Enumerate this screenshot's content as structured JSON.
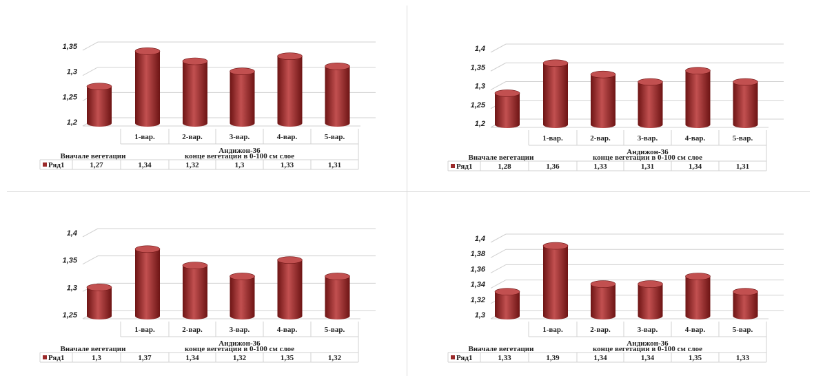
{
  "colors": {
    "bar": "#9b2a2a",
    "bar_dark": "#6d1414",
    "bar_light": "#c25050",
    "grid": "#d0d0d0"
  },
  "chart_data": [
    {
      "type": "bar",
      "categories": [
        "",
        "1-вар.",
        "2-вар.",
        "3-вар.",
        "4-вар.",
        "5-вар."
      ],
      "group_label_1": "Андижон-36",
      "group_label_2_left": "Вначале вегетации",
      "group_label_2_right": "конце вегетации в 0-100 см слое",
      "series": [
        {
          "name": "Ряд1",
          "values": [
            1.27,
            1.34,
            1.32,
            1.3,
            1.33,
            1.31
          ]
        }
      ],
      "value_labels": [
        "1,27",
        "1,34",
        "1,32",
        "1,3",
        "1,33",
        "1,31"
      ],
      "ylim": [
        1.2,
        1.35
      ],
      "yticks": [
        1.2,
        1.25,
        1.3,
        1.35
      ],
      "ytick_labels": [
        "1,2",
        "1,25",
        "1,3",
        "1,35"
      ]
    },
    {
      "type": "bar",
      "categories": [
        "",
        "1-вар.",
        "2-вар.",
        "3-вар.",
        "4-вар.",
        "5-вар."
      ],
      "group_label_1": "Андижон-36",
      "group_label_2_left": "Вначале вегетации",
      "group_label_2_right": "конце вегетации в 0-100 см слое",
      "series": [
        {
          "name": "Ряд1",
          "values": [
            1.28,
            1.36,
            1.33,
            1.31,
            1.34,
            1.31
          ]
        }
      ],
      "value_labels": [
        "1,28",
        "1,36",
        "1,33",
        "1,31",
        "1,34",
        "1,31"
      ],
      "ylim": [
        1.2,
        1.4
      ],
      "yticks": [
        1.2,
        1.25,
        1.3,
        1.35,
        1.4
      ],
      "ytick_labels": [
        "1,2",
        "1,25",
        "1,3",
        "1,35",
        "1,4"
      ]
    },
    {
      "type": "bar",
      "categories": [
        "",
        "1-вар.",
        "2-вар.",
        "3-вар.",
        "4-вар.",
        "5-вар."
      ],
      "group_label_1": "Андижон-36",
      "group_label_2_left": "Вначале вегетации",
      "group_label_2_right": "конце вегетации в 0-100 см слое",
      "series": [
        {
          "name": "Ряд1",
          "values": [
            1.3,
            1.37,
            1.34,
            1.32,
            1.35,
            1.32
          ]
        }
      ],
      "value_labels": [
        "1,3",
        "1,37",
        "1,34",
        "1,32",
        "1,35",
        "1,32"
      ],
      "ylim": [
        1.25,
        1.4
      ],
      "yticks": [
        1.25,
        1.3,
        1.35,
        1.4
      ],
      "ytick_labels": [
        "1,25",
        "1,3",
        "1,35",
        "1,4"
      ]
    },
    {
      "type": "bar",
      "categories": [
        "",
        "1-вар.",
        "2-вар.",
        "3-вар.",
        "4-вар.",
        "5-вар."
      ],
      "group_label_1": "Андижон-36",
      "group_label_2_left": "Вначале вегетации",
      "group_label_2_right": "конце вегетации в 0-100 см слое",
      "series": [
        {
          "name": "Ряд1",
          "values": [
            1.33,
            1.39,
            1.34,
            1.34,
            1.35,
            1.33
          ]
        }
      ],
      "value_labels": [
        "1,33",
        "1,39",
        "1,34",
        "1,34",
        "1,35",
        "1,33"
      ],
      "ylim": [
        1.3,
        1.4
      ],
      "yticks": [
        1.3,
        1.32,
        1.34,
        1.36,
        1.38,
        1.4
      ],
      "ytick_labels": [
        "1,3",
        "1,32",
        "1,34",
        "1,36",
        "1,38",
        "1,4"
      ]
    }
  ]
}
